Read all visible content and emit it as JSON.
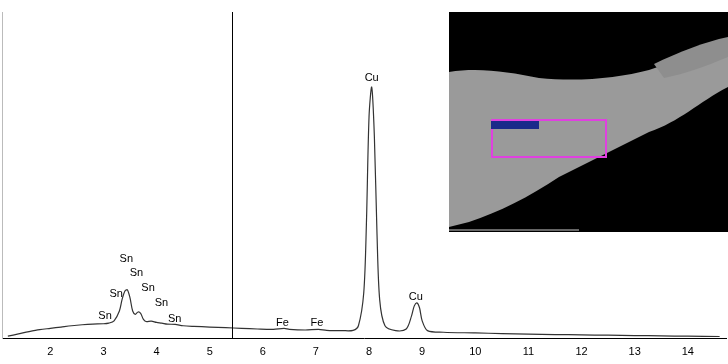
{
  "chart_data": {
    "type": "line",
    "x": [
      1.2,
      1.4,
      1.6,
      1.8,
      2.0,
      2.2,
      2.4,
      2.6,
      2.8,
      3.0,
      3.1,
      3.2,
      3.3,
      3.35,
      3.4,
      3.45,
      3.5,
      3.55,
      3.6,
      3.65,
      3.7,
      3.75,
      3.8,
      3.9,
      4.0,
      4.1,
      4.2,
      4.35,
      4.5,
      4.7,
      5.0,
      5.3,
      5.6,
      5.9,
      6.2,
      6.4,
      6.5,
      6.8,
      7.05,
      7.2,
      7.5,
      7.7,
      7.8,
      7.9,
      7.95,
      8.0,
      8.05,
      8.1,
      8.15,
      8.2,
      8.3,
      8.5,
      8.7,
      8.8,
      8.85,
      8.9,
      8.95,
      9.0,
      9.1,
      9.4,
      10.0,
      10.5,
      11.0,
      11.5,
      12.0,
      12.5,
      13.0,
      13.5,
      14.0,
      14.6
    ],
    "values": [
      0.8,
      1.5,
      2.2,
      2.8,
      3.2,
      3.6,
      4.0,
      4.3,
      4.5,
      4.6,
      4.8,
      5.5,
      8.5,
      12,
      14.5,
      15,
      12.5,
      8.5,
      7.5,
      8.2,
      7.8,
      6,
      5.3,
      5.4,
      5,
      4.8,
      4.5,
      4.4,
      4.0,
      3.8,
      3.6,
      3.4,
      3.2,
      3.0,
      2.9,
      3.2,
      2.9,
      2.7,
      2.9,
      2.6,
      2.5,
      2.6,
      4,
      14,
      35,
      68,
      77,
      62,
      32,
      12,
      4,
      2.5,
      3,
      7,
      10,
      11,
      9.5,
      5.5,
      2.5,
      2,
      1.8,
      1.6,
      1.4,
      1.3,
      1.2,
      1.1,
      1.0,
      0.9,
      0.8,
      0.7
    ],
    "color": "#333333",
    "xlim": [
      1.09,
      14.72
    ],
    "xticks": [
      2,
      3,
      4,
      5,
      6,
      7,
      8,
      9,
      10,
      11,
      12,
      13,
      14
    ],
    "ylim": [
      0,
      100
    ],
    "tick_labels": "x",
    "grid": false,
    "annotations": [
      {
        "text": "Sn",
        "x": 3.03,
        "y": 7.1
      },
      {
        "text": "Sn",
        "x": 3.24,
        "y": 13.8
      },
      {
        "text": "Sn",
        "x": 3.43,
        "y": 24.5
      },
      {
        "text": "Sn",
        "x": 3.62,
        "y": 20.2
      },
      {
        "text": "Sn",
        "x": 3.84,
        "y": 15.6
      },
      {
        "text": "Sn",
        "x": 4.09,
        "y": 11.0
      },
      {
        "text": "Sn",
        "x": 4.34,
        "y": 6.1
      },
      {
        "text": "Fe",
        "x": 6.37,
        "y": 4.9
      },
      {
        "text": "Fe",
        "x": 7.02,
        "y": 4.9
      },
      {
        "text": "Cu",
        "x": 8.05,
        "y": 79.8
      },
      {
        "text": "Cu",
        "x": 8.88,
        "y": 12.9
      }
    ],
    "cursor_x": 5.42
  }
}
